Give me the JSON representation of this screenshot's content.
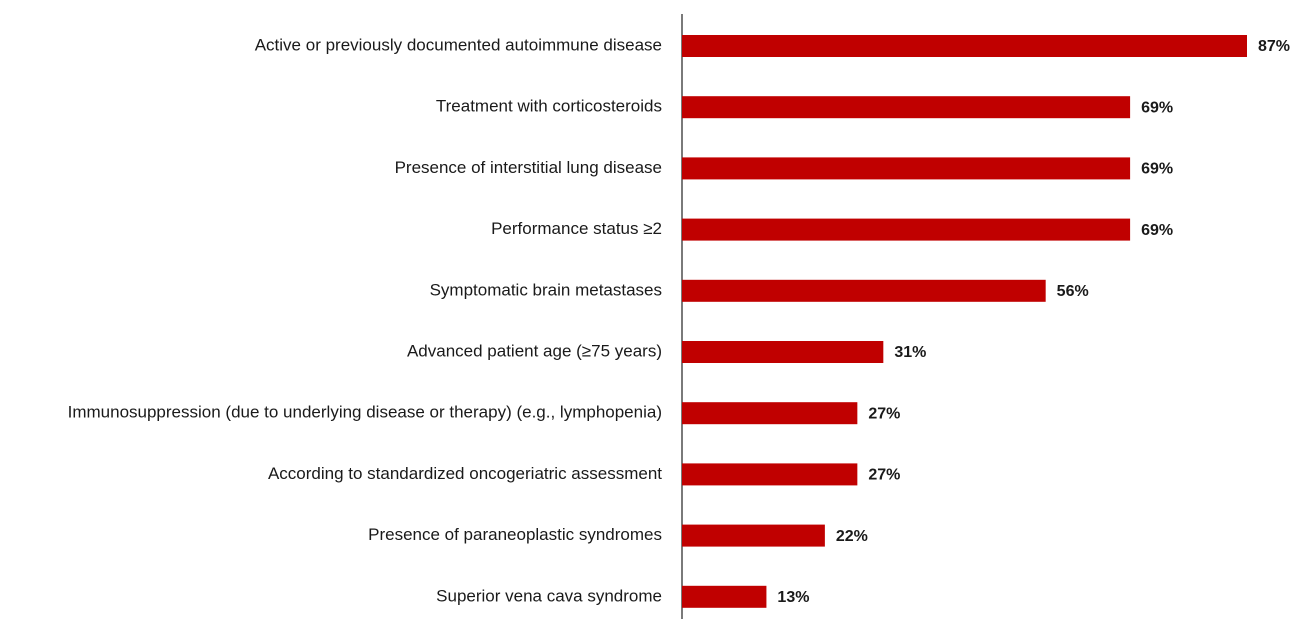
{
  "chart_data": {
    "type": "bar",
    "orientation": "horizontal",
    "categories": [
      "Active or previously documented autoimmune disease",
      "Treatment with corticosteroids",
      "Presence of interstitial lung disease",
      "Performance status ≥2",
      "Symptomatic brain metastases",
      "Advanced patient age (≥75 years)",
      "Immunosuppression (due to underlying disease or therapy) (e.g., lymphopenia)",
      "According to standardized oncogeriatric assessment",
      "Presence of paraneoplastic syndromes",
      "Superior vena cava syndrome"
    ],
    "values": [
      87,
      69,
      69,
      69,
      56,
      31,
      27,
      27,
      22,
      13
    ],
    "value_labels": [
      "87%",
      "69%",
      "69%",
      "69%",
      "56%",
      "31%",
      "27%",
      "27%",
      "22%",
      "13%"
    ],
    "color": "#c00000"
  }
}
